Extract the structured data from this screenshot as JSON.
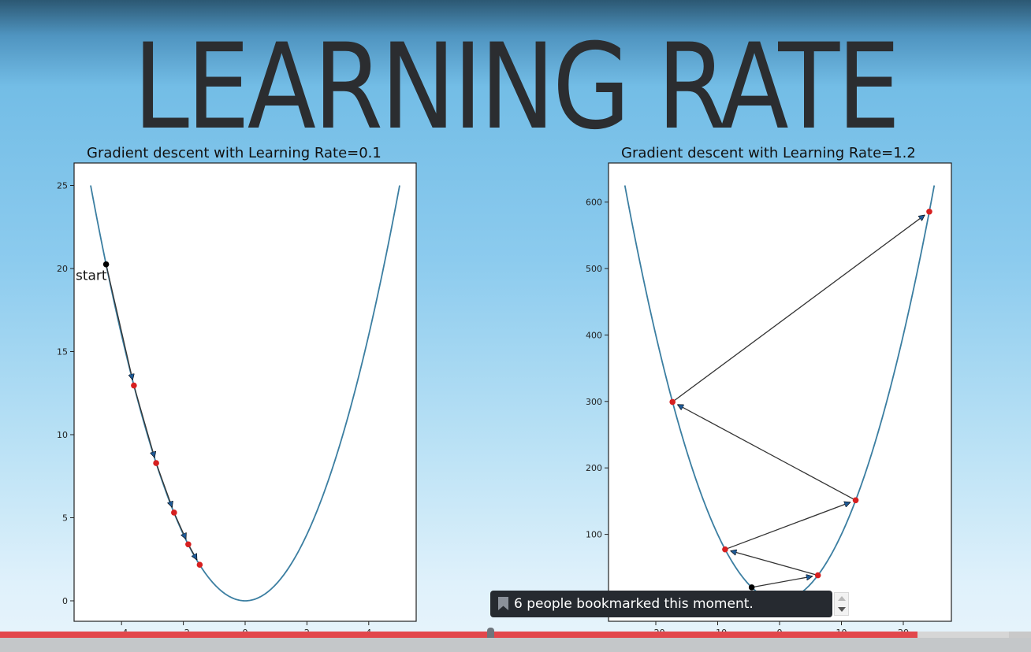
{
  "slide": {
    "title": "LEARNING RATE"
  },
  "charts_meta": {
    "curve_color": "#3b7ea1",
    "point_color": "#d62020",
    "start_color": "#000000",
    "arrow_color": "#1f5a96"
  },
  "chart_data": [
    {
      "type": "line",
      "title": "Gradient descent with Learning Rate=0.1",
      "xlim": [
        -5,
        5
      ],
      "ylim": [
        0,
        25
      ],
      "xticks": [
        "−4",
        "−2",
        "0",
        "2",
        "4"
      ],
      "yticks": [
        "0",
        "5",
        "10",
        "15",
        "20",
        "25"
      ],
      "curve": "y = x^2",
      "points": [
        {
          "x": -4.5,
          "y": 20.25,
          "label": "start"
        },
        {
          "x": -3.6,
          "y": 12.96
        },
        {
          "x": -2.88,
          "y": 8.29
        },
        {
          "x": -2.3,
          "y": 5.31
        },
        {
          "x": -1.84,
          "y": 3.4
        },
        {
          "x": -1.47,
          "y": 2.17
        }
      ]
    },
    {
      "type": "line",
      "title": "Gradient descent with Learning Rate=1.2",
      "xlim": [
        -25,
        25
      ],
      "ylim": [
        0,
        625
      ],
      "xticks": [
        "−20",
        "−10",
        "0",
        "10",
        "20"
      ],
      "yticks": [
        "100",
        "200",
        "300",
        "400",
        "500",
        "600"
      ],
      "curve": "y = x^2",
      "points": [
        {
          "x": -4.5,
          "y": 20.25
        },
        {
          "x": 6.2,
          "y": 38.4
        },
        {
          "x": -8.8,
          "y": 77.4
        },
        {
          "x": 12.3,
          "y": 151.3
        },
        {
          "x": -17.3,
          "y": 299.3
        },
        {
          "x": 24.2,
          "y": 585.6
        }
      ]
    }
  ],
  "toast": {
    "text": "6 people bookmarked this moment."
  },
  "progress": {
    "played_fraction": 0.89
  }
}
